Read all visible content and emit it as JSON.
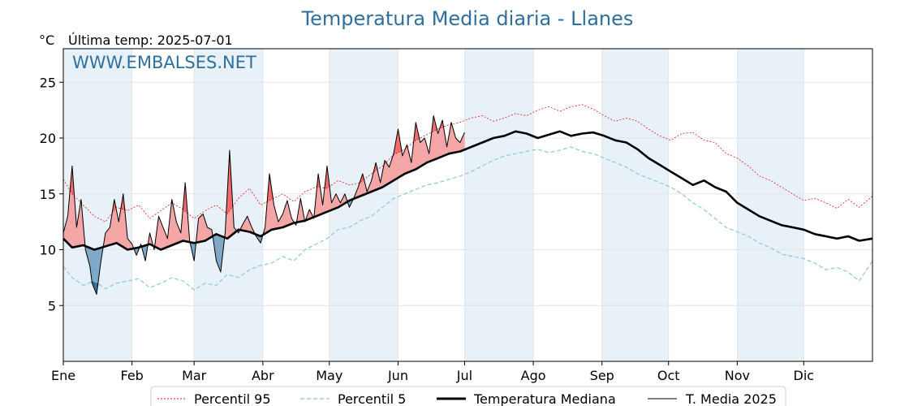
{
  "chart_data": {
    "type": "line",
    "title": "Temperatura Media diaria - Llanes",
    "unit_label": "°C",
    "last_temp_label": "Última temp: 2025-07-01",
    "watermark": "WWW.EMBALSES.NET",
    "ylim": [
      0,
      28
    ],
    "yticks": [
      5,
      10,
      15,
      20,
      25
    ],
    "xlim": [
      1,
      366
    ],
    "months": [
      {
        "label": "Ene",
        "day": 1
      },
      {
        "label": "Feb",
        "day": 32
      },
      {
        "label": "Mar",
        "day": 60
      },
      {
        "label": "Abr",
        "day": 91
      },
      {
        "label": "May",
        "day": 121
      },
      {
        "label": "Jun",
        "day": 152
      },
      {
        "label": "Jul",
        "day": 182
      },
      {
        "label": "Ago",
        "day": 213
      },
      {
        "label": "Sep",
        "day": 244
      },
      {
        "label": "Oct",
        "day": 274
      },
      {
        "label": "Nov",
        "day": 305
      },
      {
        "label": "Dic",
        "day": 335
      }
    ],
    "grid": true,
    "legend_position": "bottom-center",
    "colors": {
      "p95": "#e8141c",
      "p5": "#8cc8dc",
      "median": "#000000",
      "current": "#000000",
      "above_fill": "#f4a6a6",
      "above_strong": "#f06a6a",
      "below_fill": "#7fa8c8",
      "below_strong": "#2e6f9e",
      "band": "#e8f1f8",
      "title": "#2e6f9e"
    },
    "series": [
      {
        "key": "p95",
        "name": "Percentil 95",
        "x": [
          1,
          5,
          10,
          15,
          20,
          25,
          30,
          35,
          40,
          45,
          50,
          55,
          60,
          65,
          70,
          75,
          80,
          85,
          90,
          95,
          100,
          105,
          110,
          115,
          120,
          125,
          130,
          135,
          140,
          145,
          150,
          155,
          160,
          165,
          170,
          175,
          180,
          185,
          190,
          195,
          200,
          205,
          210,
          215,
          220,
          225,
          230,
          235,
          240,
          245,
          250,
          255,
          260,
          265,
          270,
          275,
          280,
          285,
          290,
          295,
          300,
          305,
          310,
          315,
          320,
          325,
          330,
          335,
          340,
          345,
          350,
          355,
          360,
          366
        ],
        "y": [
          16.3,
          15.0,
          14.0,
          13.0,
          12.5,
          13.8,
          13.5,
          14.0,
          12.8,
          13.5,
          14.2,
          13.6,
          12.8,
          13.5,
          14.0,
          13.2,
          14.6,
          15.5,
          14.0,
          14.5,
          15.0,
          14.3,
          15.2,
          15.6,
          15.5,
          16.2,
          15.8,
          16.0,
          16.8,
          17.5,
          18.5,
          19.0,
          19.8,
          20.3,
          20.8,
          21.2,
          21.4,
          21.8,
          22.0,
          21.5,
          21.8,
          22.2,
          22.0,
          22.5,
          22.8,
          22.4,
          22.8,
          23.0,
          22.6,
          22.0,
          21.5,
          21.8,
          21.5,
          20.8,
          20.2,
          19.8,
          20.4,
          20.5,
          19.8,
          19.6,
          18.6,
          18.2,
          17.5,
          16.6,
          16.2,
          15.6,
          15.0,
          14.4,
          14.6,
          14.2,
          13.7,
          14.5,
          13.8,
          14.8
        ]
      },
      {
        "key": "p5",
        "name": "Percentil 5",
        "x": [
          1,
          5,
          10,
          15,
          20,
          25,
          30,
          35,
          40,
          45,
          50,
          55,
          60,
          65,
          70,
          75,
          80,
          85,
          90,
          95,
          100,
          105,
          110,
          115,
          120,
          125,
          130,
          135,
          140,
          145,
          150,
          155,
          160,
          165,
          170,
          175,
          180,
          185,
          190,
          195,
          200,
          205,
          210,
          215,
          220,
          225,
          230,
          235,
          240,
          245,
          250,
          255,
          260,
          265,
          270,
          275,
          280,
          285,
          290,
          295,
          300,
          305,
          310,
          315,
          320,
          325,
          330,
          335,
          340,
          345,
          350,
          355,
          360,
          366
        ],
        "y": [
          8.5,
          7.5,
          6.8,
          7.2,
          6.5,
          7.0,
          7.2,
          7.4,
          6.6,
          7.0,
          7.5,
          7.2,
          6.4,
          7.0,
          6.8,
          7.8,
          7.5,
          8.2,
          8.6,
          8.8,
          9.4,
          9.0,
          10.0,
          10.5,
          11.0,
          11.8,
          12.0,
          12.6,
          13.0,
          13.8,
          14.6,
          15.0,
          15.4,
          15.8,
          16.0,
          16.3,
          16.6,
          17.0,
          17.5,
          18.0,
          18.4,
          18.6,
          18.8,
          19.0,
          18.7,
          18.9,
          19.2,
          18.8,
          18.6,
          18.2,
          17.8,
          17.4,
          16.8,
          16.4,
          16.0,
          15.6,
          15.0,
          14.2,
          13.6,
          12.8,
          12.0,
          11.6,
          11.2,
          10.6,
          10.2,
          9.6,
          9.4,
          9.2,
          8.8,
          8.2,
          8.4,
          8.0,
          7.2,
          9.0
        ]
      },
      {
        "key": "median",
        "name": "Temperatura Mediana",
        "x": [
          1,
          5,
          10,
          15,
          20,
          25,
          30,
          35,
          40,
          45,
          50,
          55,
          60,
          65,
          70,
          75,
          80,
          85,
          90,
          95,
          100,
          105,
          110,
          115,
          120,
          125,
          130,
          135,
          140,
          145,
          150,
          155,
          160,
          165,
          170,
          175,
          180,
          185,
          190,
          195,
          200,
          205,
          210,
          215,
          220,
          225,
          230,
          235,
          240,
          245,
          250,
          255,
          260,
          265,
          270,
          275,
          280,
          285,
          290,
          295,
          300,
          305,
          310,
          315,
          320,
          325,
          330,
          335,
          340,
          345,
          350,
          355,
          360,
          366
        ],
        "y": [
          11.0,
          10.2,
          10.4,
          10.0,
          10.3,
          10.6,
          10.0,
          10.2,
          10.5,
          10.0,
          10.4,
          10.8,
          10.6,
          10.8,
          11.4,
          11.0,
          11.8,
          11.6,
          11.2,
          11.8,
          12.0,
          12.4,
          12.6,
          13.0,
          13.4,
          13.8,
          14.4,
          14.8,
          15.2,
          15.6,
          16.2,
          16.8,
          17.2,
          17.8,
          18.2,
          18.6,
          18.8,
          19.2,
          19.6,
          20.0,
          20.2,
          20.6,
          20.4,
          20.0,
          20.3,
          20.6,
          20.2,
          20.4,
          20.5,
          20.2,
          19.8,
          19.6,
          19.0,
          18.2,
          17.6,
          17.0,
          16.4,
          15.8,
          16.2,
          15.6,
          15.2,
          14.2,
          13.6,
          13.0,
          12.6,
          12.2,
          12.0,
          11.8,
          11.4,
          11.2,
          11.0,
          11.2,
          10.8,
          11.0
        ]
      },
      {
        "key": "current",
        "name": "T. Media 2025",
        "x": [
          1,
          3,
          5,
          7,
          9,
          11,
          13,
          14,
          16,
          18,
          20,
          22,
          24,
          26,
          28,
          30,
          32,
          34,
          36,
          38,
          40,
          42,
          44,
          46,
          48,
          50,
          52,
          54,
          56,
          58,
          60,
          62,
          64,
          66,
          68,
          70,
          72,
          74,
          76,
          78,
          80,
          82,
          84,
          86,
          88,
          90,
          92,
          94,
          96,
          98,
          100,
          102,
          104,
          106,
          108,
          110,
          112,
          114,
          116,
          118,
          120,
          122,
          124,
          126,
          128,
          130,
          132,
          134,
          136,
          138,
          140,
          142,
          144,
          146,
          148,
          150,
          152,
          154,
          156,
          158,
          160,
          162,
          164,
          166,
          168,
          170,
          172,
          174,
          176,
          178,
          180,
          182
        ],
        "y": [
          11.5,
          13.0,
          17.5,
          12.0,
          14.5,
          10.0,
          8.5,
          7.0,
          6.0,
          9.0,
          11.5,
          12.0,
          14.5,
          12.5,
          15.0,
          11.0,
          10.5,
          9.5,
          10.5,
          9.0,
          11.5,
          10.0,
          13.0,
          12.0,
          11.0,
          14.5,
          12.5,
          11.5,
          16.0,
          10.8,
          9.0,
          12.8,
          13.2,
          12.0,
          11.8,
          9.0,
          8.0,
          11.5,
          18.9,
          12.0,
          11.5,
          12.3,
          13.0,
          12.0,
          11.2,
          10.6,
          12.0,
          16.8,
          14.0,
          12.5,
          13.2,
          14.4,
          12.8,
          12.2,
          14.6,
          12.5,
          13.6,
          12.8,
          16.8,
          14.0,
          17.5,
          14.2,
          15.0,
          14.2,
          15.0,
          13.8,
          14.6,
          15.6,
          16.8,
          15.2,
          16.2,
          17.8,
          16.0,
          18.0,
          17.4,
          18.6,
          20.8,
          18.4,
          19.4,
          17.8,
          21.4,
          19.6,
          20.0,
          18.6,
          22.0,
          20.4,
          21.6,
          19.2,
          21.4,
          20.0,
          19.6,
          20.5
        ]
      }
    ]
  }
}
